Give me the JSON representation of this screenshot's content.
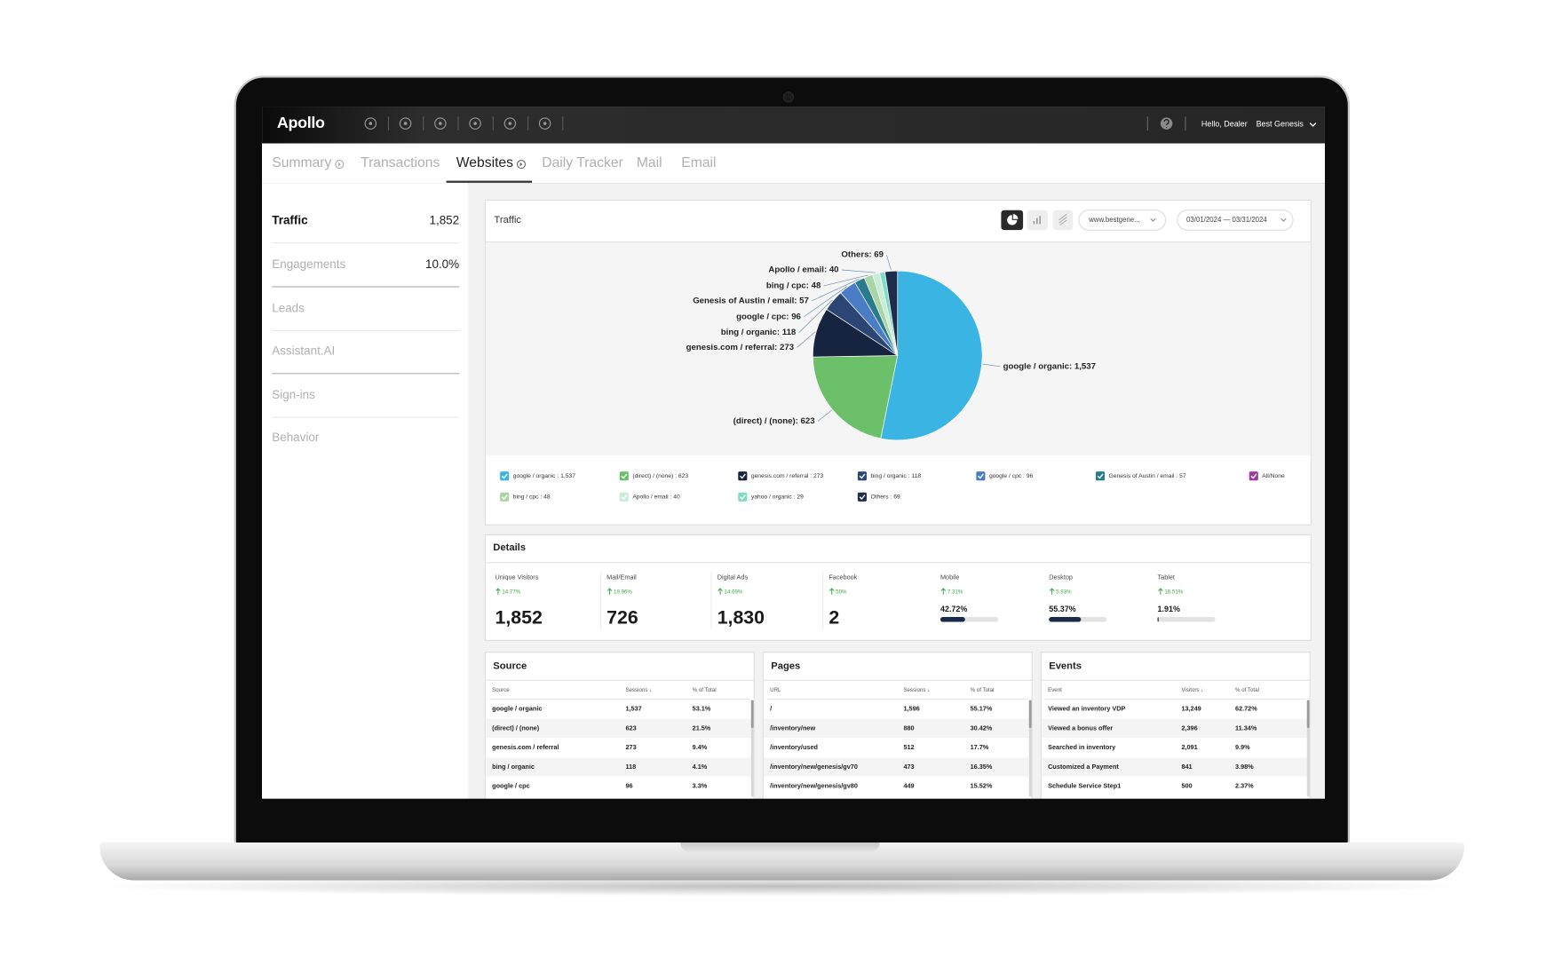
{
  "nav": {
    "logo": "Apollo",
    "greeting": "Hello, Dealer",
    "dealer": "Best Genesis"
  },
  "tabs": [
    "Summary",
    "Transactions",
    "Websites",
    "Daily Tracker",
    "Mail",
    "Email"
  ],
  "sidebar": [
    {
      "label": "Traffic",
      "value": "1,852"
    },
    {
      "label": "Engagements",
      "value": "10.0%"
    },
    {
      "label": "Leads"
    },
    {
      "label": "Assistant.AI"
    },
    {
      "label": "Sign-ins"
    },
    {
      "label": "Behavior"
    }
  ],
  "traffic": {
    "title": "Traffic",
    "site": "www.bestgene...",
    "date_range": "03/01/2024 — 03/31/2024",
    "all_none": "All/None",
    "chart": {
      "type": "pie",
      "slices": [
        {
          "callout": "google / organic: 1,537",
          "legend": "google / organic : 1,537",
          "value": 1537,
          "color": "#3ab4e2"
        },
        {
          "callout": "(direct) / (none): 623",
          "legend": "(direct) / (none) : 623",
          "value": 623,
          "color": "#6cc06a"
        },
        {
          "callout": "genesis.com / referral: 273",
          "legend": "genesis.com / referral : 273",
          "value": 273,
          "color": "#16243f"
        },
        {
          "callout": "bing / organic: 118",
          "legend": "bing / organic : 118",
          "value": 118,
          "color": "#2b4574"
        },
        {
          "callout": "google / cpc: 96",
          "legend": "google / cpc : 96",
          "value": 96,
          "color": "#4b7cc6"
        },
        {
          "callout": "Genesis of Austin / email: 57",
          "legend": "Genesis of Austin / email : 57",
          "value": 57,
          "color": "#2a7b8c"
        },
        {
          "callout": "bing / cpc: 48",
          "legend": "bing / cpc : 48",
          "value": 48,
          "color": "#a8d5a3"
        },
        {
          "callout": "Apollo / email: 40",
          "legend": "Apollo / email : 40",
          "value": 40,
          "color": "#c9ecd8"
        },
        {
          "callout": null,
          "legend": "yahoo / organic : 29",
          "value": 29,
          "color": "#7fdcc5"
        },
        {
          "callout": "Others: 69",
          "legend": "Others : 69",
          "value": 69,
          "color": "#1f2d4d"
        }
      ]
    }
  },
  "details": {
    "title": "Details",
    "metrics": [
      {
        "label": "Unique Visitors",
        "change": "14.77%",
        "total": "1,852"
      },
      {
        "label": "Mail/Email",
        "change": "19.96%",
        "total": "726"
      },
      {
        "label": "Digital Ads",
        "change": "14.69%",
        "total": "1,830"
      },
      {
        "label": "Facebook",
        "change": "50%",
        "total": "2"
      },
      {
        "label": "Mobile",
        "change": "7.31%",
        "value": 42.72,
        "value_label": "42.72%"
      },
      {
        "label": "Desktop",
        "change": "5.93%",
        "value": 55.37,
        "value_label": "55.37%"
      },
      {
        "label": "Tablet",
        "change": "16.51%",
        "value": 1.91,
        "value_label": "1.91%"
      }
    ]
  },
  "tables": [
    {
      "title": "Source",
      "columns": [
        "Source",
        "Sessions ↓",
        "% of Total"
      ],
      "rows": [
        [
          "google / organic",
          "1,537",
          "53.1%"
        ],
        [
          "(direct) / (none)",
          "623",
          "21.5%"
        ],
        [
          "genesis.com / referral",
          "273",
          "9.4%"
        ],
        [
          "bing / organic",
          "118",
          "4.1%"
        ],
        [
          "google / cpc",
          "96",
          "3.3%"
        ]
      ]
    },
    {
      "title": "Pages",
      "columns": [
        "URL",
        "Sessions ↓",
        "% of Total"
      ],
      "rows": [
        [
          "/",
          "1,596",
          "55.17%"
        ],
        [
          "/inventory/new",
          "880",
          "30.42%"
        ],
        [
          "/inventory/used",
          "512",
          "17.7%"
        ],
        [
          "/inventory/new/genesis/gv70",
          "473",
          "16.35%"
        ],
        [
          "/inventory/new/genesis/gv80",
          "449",
          "15.52%"
        ]
      ]
    },
    {
      "title": "Events",
      "columns": [
        "Event",
        "Visitors ↓",
        "% of Total"
      ],
      "rows": [
        [
          "Viewed an inventory VDP",
          "13,249",
          "62.72%"
        ],
        [
          "Viewed a bonus offer",
          "2,396",
          "11.34%"
        ],
        [
          "Searched in inventory",
          "2,091",
          "9.9%"
        ],
        [
          "Customized a Payment",
          "841",
          "3.98%"
        ],
        [
          "Schedule Service Step1",
          "500",
          "2.37%"
        ]
      ]
    }
  ]
}
